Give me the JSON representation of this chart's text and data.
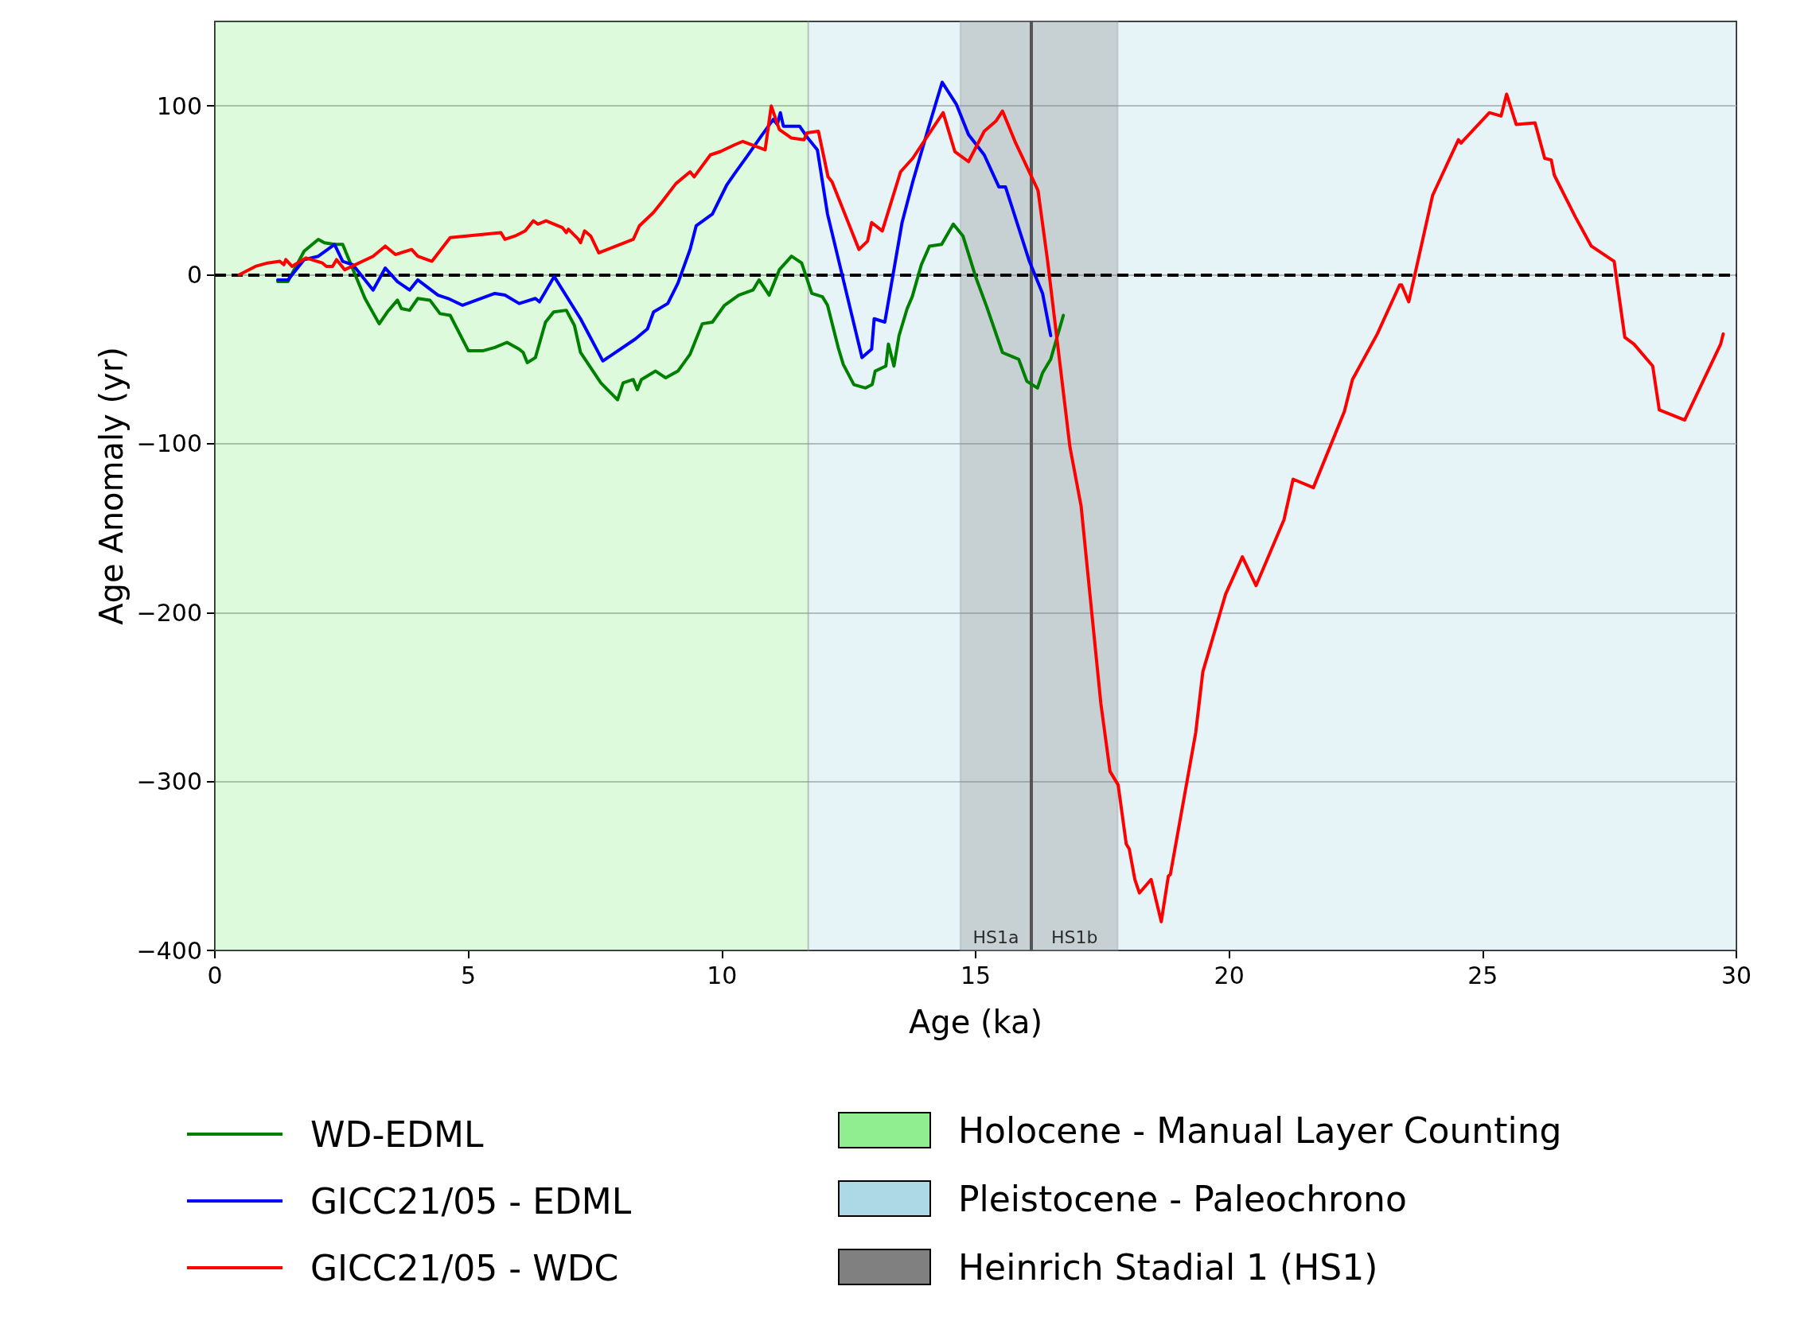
{
  "chart_data": {
    "type": "line",
    "xlabel": "Age (ka)",
    "ylabel": "Age Anomaly (yr)",
    "xlim": [
      0,
      30
    ],
    "xticks": [
      0,
      5,
      10,
      15,
      20,
      25,
      30
    ],
    "ylim": [
      -400,
      150
    ],
    "yticks": [
      -400,
      -300,
      -200,
      -100,
      0,
      100
    ],
    "grid": "y",
    "legend": "bottom",
    "line_style": "solid",
    "marker": "none",
    "series": [
      {
        "name": "WD-EDML",
        "color": "#008000",
        "x": [
          1.24,
          1.44,
          1.76,
          2.04,
          2.16,
          2.36,
          2.52,
          2.96,
          3.24,
          3.4,
          3.6,
          3.68,
          3.84,
          4.0,
          4.24,
          4.44,
          4.64,
          5.0,
          5.28,
          5.52,
          5.76,
          6.0,
          6.08,
          6.16,
          6.32,
          6.52,
          6.68,
          6.93,
          7.09,
          7.21,
          7.61,
          7.94,
          8.05,
          8.25,
          8.33,
          8.41,
          8.69,
          8.89,
          9.13,
          9.37,
          9.61,
          9.81,
          10.05,
          10.33,
          10.61,
          10.73,
          10.93,
          11.13,
          11.37,
          11.57,
          11.77,
          11.98,
          12.08,
          12.29,
          12.39,
          12.6,
          12.83,
          12.96,
          13.02,
          13.23,
          13.28,
          13.39,
          13.49,
          13.65,
          13.75,
          13.93,
          14.09,
          14.33,
          14.56,
          14.75,
          15.01,
          15.22,
          15.53,
          15.85,
          16.01,
          16.22,
          16.32,
          16.48,
          16.73
        ],
        "values": [
          -4,
          -4,
          14,
          21,
          19,
          18,
          18,
          -14,
          -29,
          -22,
          -15,
          -20,
          -21,
          -14,
          -15,
          -23,
          -24,
          -45,
          -45,
          -43,
          -40,
          -44,
          -46,
          -52,
          -49,
          -28,
          -22,
          -21,
          -30,
          -46,
          -64,
          -74,
          -64,
          -62,
          -68,
          -62,
          -57,
          -61,
          -57,
          -47,
          -29,
          -28,
          -18,
          -12,
          -9,
          -3,
          -12,
          3,
          11,
          7,
          -11,
          -13,
          -18,
          -43,
          -53,
          -65,
          -67,
          -65,
          -57,
          -54,
          -41,
          -54,
          -36,
          -20,
          -13,
          6,
          17,
          18,
          30,
          23,
          -2,
          -19,
          -46,
          -50,
          -63,
          -67,
          -58,
          -50,
          -24
        ]
      },
      {
        "name": "GICC21/05 - EDML",
        "color": "#0000ff",
        "x": [
          1.24,
          1.44,
          1.76,
          2.04,
          2.36,
          2.52,
          2.72,
          3.12,
          3.36,
          3.6,
          3.84,
          4.0,
          4.4,
          4.6,
          4.88,
          5.52,
          5.72,
          6.0,
          6.32,
          6.4,
          6.69,
          7.21,
          7.65,
          8.29,
          8.53,
          8.65,
          8.93,
          9.13,
          9.37,
          9.49,
          9.81,
          10.09,
          10.25,
          10.49,
          10.77,
          11.01,
          11.09,
          11.15,
          11.21,
          11.53,
          11.69,
          11.88,
          12.08,
          12.76,
          12.95,
          13.0,
          13.21,
          13.55,
          13.76,
          14.07,
          14.34,
          14.62,
          14.86,
          15.17,
          15.46,
          15.59,
          16.06,
          16.32,
          16.48
        ],
        "values": [
          -3,
          -3,
          9,
          11,
          18,
          8,
          6,
          -9,
          4,
          -4,
          -9,
          -3,
          -12,
          -14,
          -18,
          -11,
          -12,
          -17,
          -14,
          -16,
          -1,
          -26,
          -51,
          -38,
          -32,
          -22,
          -17,
          -5,
          15,
          29,
          36,
          53,
          60,
          70,
          82,
          92,
          89,
          96,
          88,
          88,
          81,
          74,
          36,
          -49,
          -44,
          -26,
          -28,
          31,
          55,
          87,
          114,
          101,
          83,
          71,
          52,
          52,
          8,
          -11,
          -36
        ]
      },
      {
        "name": "GICC21/05 - WDC",
        "color": "#ff0000",
        "x": [
          0.48,
          0.8,
          1.04,
          1.28,
          1.36,
          1.4,
          1.52,
          1.8,
          2.12,
          2.2,
          2.32,
          2.4,
          2.56,
          3.12,
          3.36,
          3.56,
          3.88,
          4.0,
          4.28,
          4.64,
          5.64,
          5.72,
          5.92,
          6.12,
          6.28,
          6.37,
          6.53,
          6.85,
          6.93,
          6.97,
          7.17,
          7.21,
          7.29,
          7.41,
          7.57,
          8.25,
          8.37,
          8.65,
          8.81,
          9.09,
          9.37,
          9.45,
          9.77,
          9.97,
          10.25,
          10.41,
          10.85,
          10.97,
          11.13,
          11.37,
          11.62,
          11.67,
          11.9,
          12.09,
          12.17,
          12.7,
          12.87,
          12.95,
          13.16,
          13.52,
          13.76,
          14.36,
          14.59,
          14.86,
          15.17,
          15.4,
          15.53,
          15.79,
          16.23,
          16.42,
          16.86,
          17.08,
          17.47,
          17.65,
          17.81,
          17.97,
          18.03,
          18.14,
          18.23,
          18.46,
          18.66,
          18.8,
          18.84,
          19.34,
          19.48,
          19.93,
          20.26,
          20.53,
          21.08,
          21.26,
          21.66,
          22.27,
          22.43,
          22.92,
          23.36,
          23.4,
          23.54,
          24.01,
          24.52,
          24.57,
          25.13,
          25.36,
          25.47,
          25.66,
          26.03,
          26.22,
          26.35,
          26.41,
          26.83,
          27.14,
          27.59,
          27.8,
          27.98,
          28.35,
          28.48,
          28.98,
          29.69,
          29.74
        ],
        "values": [
          0,
          5,
          7,
          8,
          6,
          9,
          5,
          10,
          7,
          5,
          5,
          9,
          3,
          11,
          17,
          12,
          15,
          11,
          8,
          22,
          25,
          21,
          23,
          26,
          32,
          30,
          32,
          28,
          25,
          27,
          21,
          19,
          26,
          23,
          13,
          21,
          29,
          37,
          43,
          54,
          61,
          58,
          71,
          73,
          77,
          79,
          74,
          100,
          86,
          81,
          80,
          84,
          85,
          58,
          55,
          15,
          20,
          31,
          26,
          61,
          69,
          96,
          73,
          67,
          85,
          91,
          97,
          78,
          50,
          8,
          -102,
          -137,
          -254,
          -294,
          -302,
          -337,
          -340,
          -358,
          -366,
          -358,
          -383,
          -356,
          -355,
          -271,
          -235,
          -189,
          -167,
          -184,
          -145,
          -121,
          -126,
          -81,
          -62,
          -35,
          -6,
          -6,
          -16,
          47,
          80,
          78,
          96,
          94,
          107,
          89,
          90,
          69,
          68,
          59,
          34,
          17,
          8,
          -37,
          -41,
          -54,
          -80,
          -86,
          -41,
          -35
        ]
      }
    ],
    "bands": [
      {
        "axis": "x",
        "from": 0,
        "to": 11.7,
        "label": "Holocene - Manual Layer Counting",
        "color": "#90ee90"
      },
      {
        "axis": "x",
        "from": 11.7,
        "to": 30,
        "label": "Pleistocene - Paleochrono",
        "color": "#add8e6"
      },
      {
        "axis": "x",
        "from": 14.7,
        "to": 17.8,
        "label": "Heinrich Stadial 1 (HS1)",
        "color": "#808080"
      }
    ],
    "ref_lines": [
      {
        "axis": "y",
        "value": 0,
        "color": "#000000",
        "line_style": "dashed"
      },
      {
        "axis": "x",
        "value": 16.1,
        "color": "#555555",
        "line_style": "solid"
      }
    ],
    "annotations": [
      "HS1a",
      "HS1b"
    ]
  }
}
